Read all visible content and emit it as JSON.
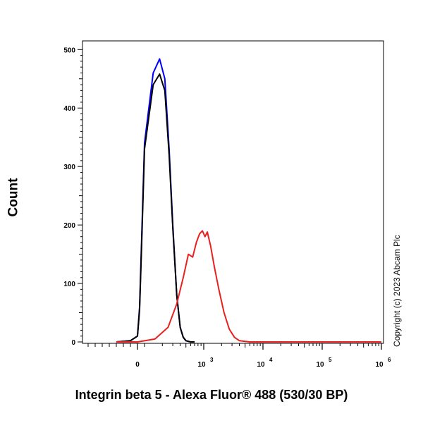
{
  "chart_data": {
    "type": "line",
    "xlabel": "Integrin beta 5 - Alexa Fluor® 488 (530/30 BP)",
    "ylabel": "Count",
    "ylim": [
      0,
      510
    ],
    "yticks": [
      0,
      100,
      200,
      300,
      400,
      500
    ],
    "xscale": "biexponential",
    "xlim": [
      -1000,
      1000000
    ],
    "xtick_labels": [
      {
        "value": 0,
        "label": "0",
        "exp": ""
      },
      {
        "value": 1000,
        "label": "10",
        "exp": "3"
      },
      {
        "value": 10000,
        "label": "10",
        "exp": "4"
      },
      {
        "value": 100000,
        "label": "10",
        "exp": "5"
      },
      {
        "value": 1000000,
        "label": "10",
        "exp": "6"
      }
    ],
    "grid": false,
    "legend": "none",
    "annotation": "Copyright (c) 2023 Abcam Plc",
    "series": [
      {
        "color": "#0000ff",
        "x": [
          -300,
          -100,
          0,
          30,
          60,
          100,
          140,
          180,
          220,
          260,
          300,
          350,
          400,
          450,
          500,
          600,
          700
        ],
        "y": [
          0,
          2,
          10,
          60,
          180,
          340,
          460,
          484,
          450,
          330,
          200,
          80,
          25,
          8,
          2,
          0,
          0
        ]
      },
      {
        "color": "#000000",
        "x": [
          -300,
          -100,
          0,
          30,
          60,
          100,
          140,
          180,
          220,
          260,
          300,
          350,
          400,
          450,
          500,
          600,
          700
        ],
        "y": [
          0,
          2,
          10,
          55,
          170,
          330,
          440,
          458,
          430,
          320,
          195,
          80,
          25,
          8,
          2,
          0,
          0
        ]
      },
      {
        "color": "#e8211f",
        "x": [
          -300,
          0,
          150,
          250,
          350,
          450,
          550,
          650,
          750,
          850,
          950,
          1050,
          1150,
          1300,
          1500,
          1800,
          2200,
          2700,
          3300,
          4000,
          5000,
          6000,
          8000,
          1000000
        ],
        "y": [
          0,
          0,
          5,
          25,
          65,
          110,
          150,
          145,
          170,
          185,
          190,
          180,
          188,
          165,
          130,
          90,
          50,
          22,
          8,
          2,
          1,
          0,
          0,
          0
        ]
      }
    ]
  }
}
